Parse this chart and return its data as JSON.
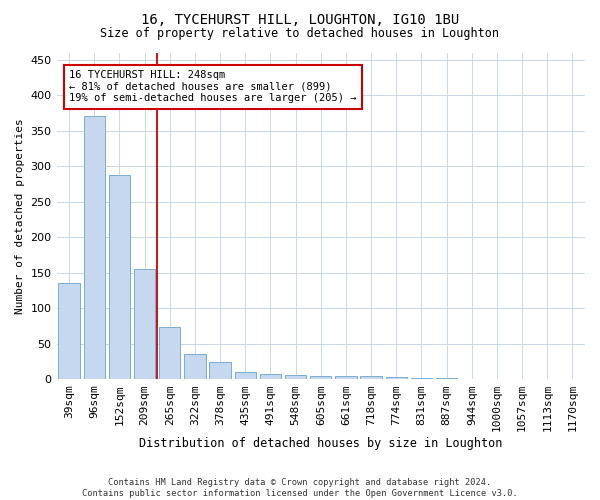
{
  "title": "16, TYCEHURST HILL, LOUGHTON, IG10 1BU",
  "subtitle": "Size of property relative to detached houses in Loughton",
  "xlabel": "Distribution of detached houses by size in Loughton",
  "ylabel": "Number of detached properties",
  "bar_color": "#c5d8ef",
  "bar_edge_color": "#7aadd4",
  "categories": [
    "39sqm",
    "96sqm",
    "152sqm",
    "209sqm",
    "265sqm",
    "322sqm",
    "378sqm",
    "435sqm",
    "491sqm",
    "548sqm",
    "605sqm",
    "661sqm",
    "718sqm",
    "774sqm",
    "831sqm",
    "887sqm",
    "944sqm",
    "1000sqm",
    "1057sqm",
    "1113sqm",
    "1170sqm"
  ],
  "values": [
    135,
    370,
    288,
    155,
    74,
    36,
    25,
    11,
    8,
    6,
    5,
    4,
    4,
    3,
    2,
    2,
    1,
    1,
    1,
    1,
    1
  ],
  "vline_x": 3.5,
  "vline_color": "#cc0000",
  "annotation_text": "16 TYCEHURST HILL: 248sqm\n← 81% of detached houses are smaller (899)\n19% of semi-detached houses are larger (205) →",
  "annotation_box_color": "#ffffff",
  "annotation_box_edge": "#cc0000",
  "ylim": [
    0,
    460
  ],
  "yticks": [
    0,
    50,
    100,
    150,
    200,
    250,
    300,
    350,
    400,
    450
  ],
  "footer": "Contains HM Land Registry data © Crown copyright and database right 2024.\nContains public sector information licensed under the Open Government Licence v3.0.",
  "bg_color": "#ffffff",
  "grid_color": "#c8d8e8"
}
